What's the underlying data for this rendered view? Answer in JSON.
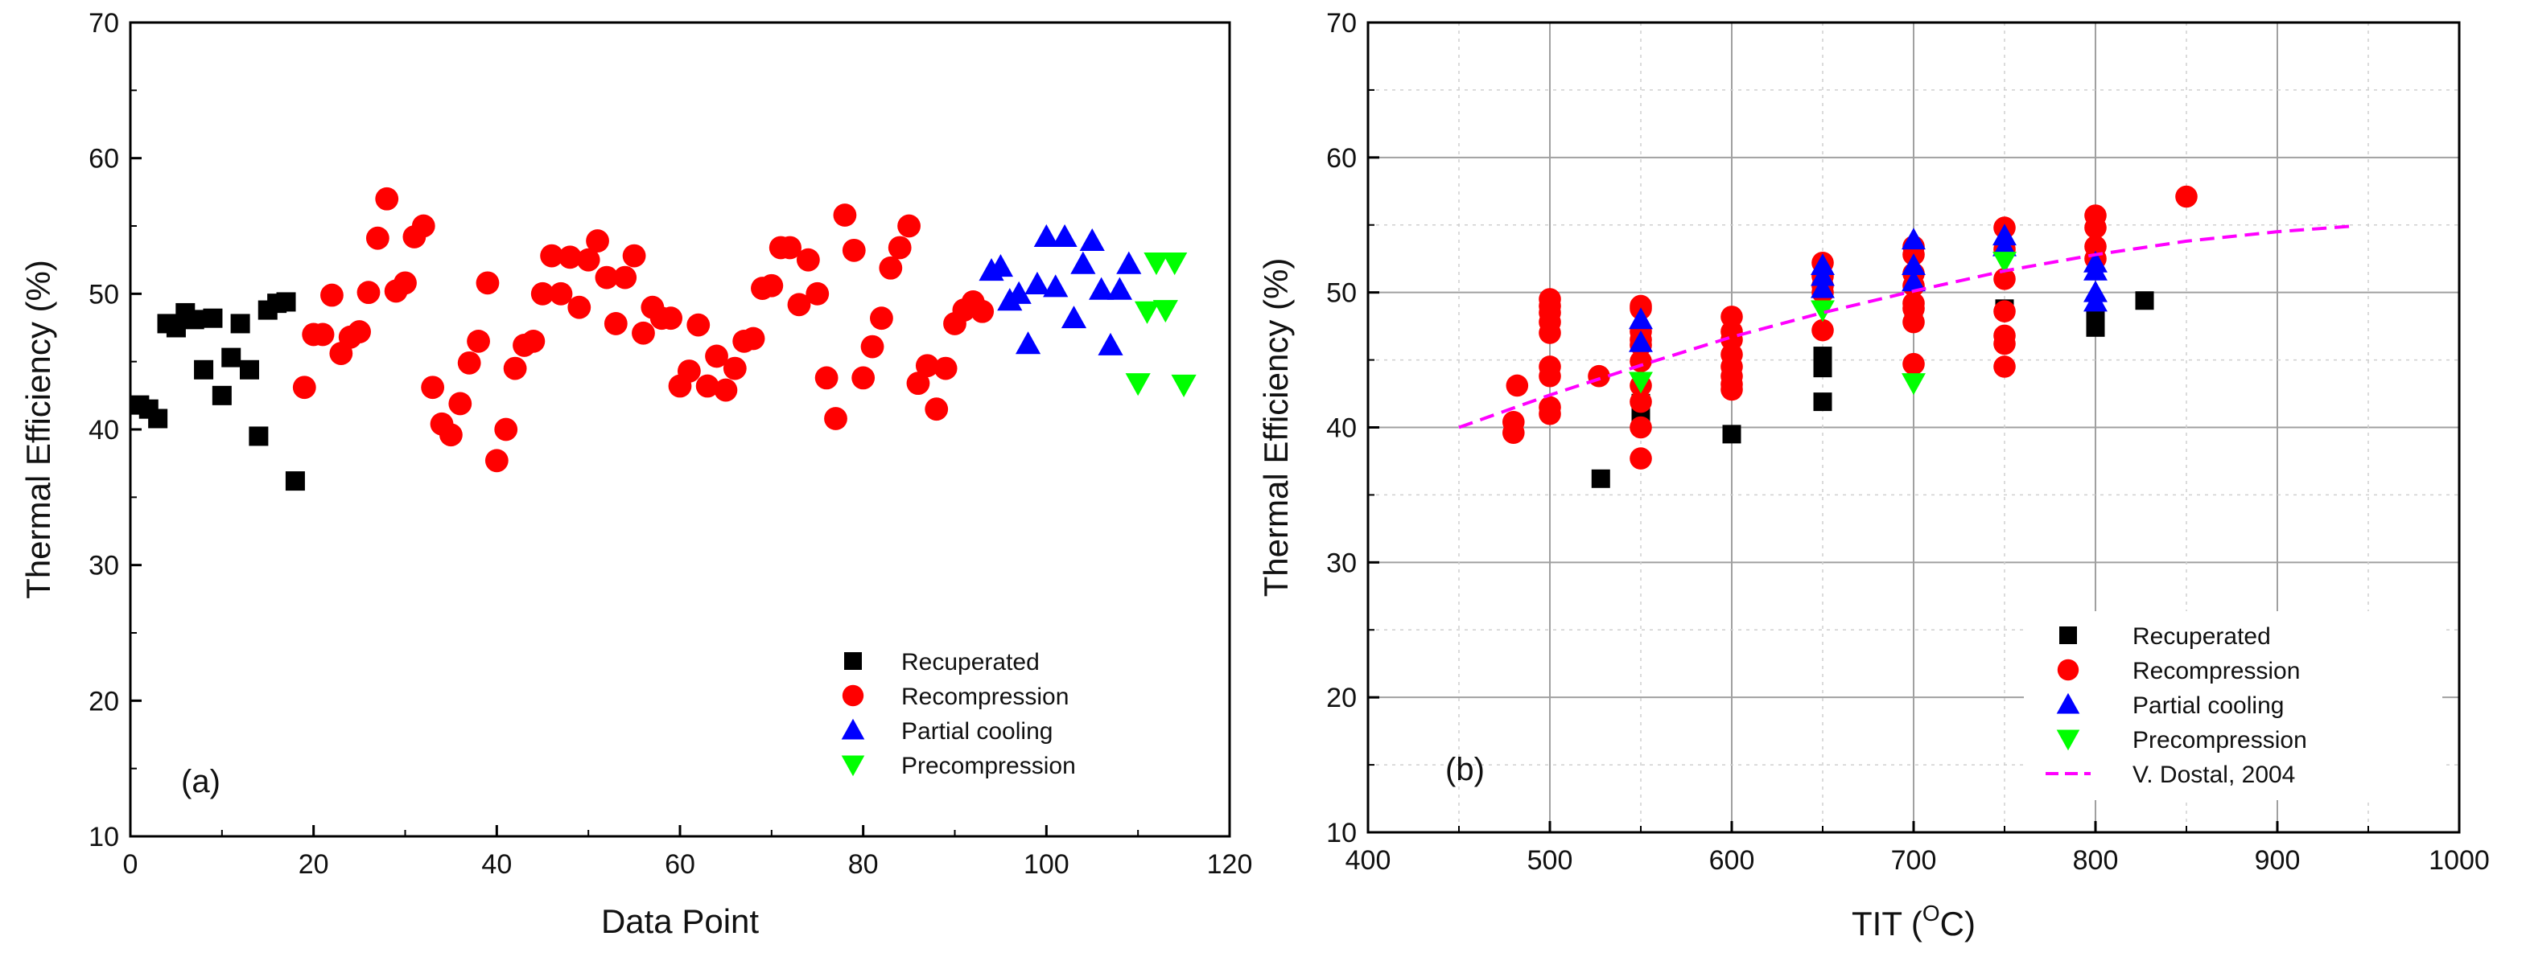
{
  "chart_data": [
    {
      "type": "scatter",
      "panel_label": "(a)",
      "xlabel": "Data Point",
      "ylabel": "Thermal Efficiency (%)",
      "xlim": [
        0,
        120
      ],
      "ylim": [
        10,
        70
      ],
      "xticks": [
        0,
        20,
        40,
        60,
        80,
        100,
        120
      ],
      "yticks": [
        10,
        20,
        30,
        40,
        50,
        60,
        70
      ],
      "grid": false,
      "legend_position": "bottom-right",
      "series": [
        {
          "name": "Recuperated",
          "marker": "square",
          "color": "#000000",
          "points": [
            [
              1,
              41.8
            ],
            [
              2,
              41.5
            ],
            [
              3,
              40.8
            ],
            [
              4,
              47.8
            ],
            [
              5,
              47.5
            ],
            [
              6,
              48.6
            ],
            [
              7,
              48.1
            ],
            [
              8,
              44.4
            ],
            [
              9,
              48.2
            ],
            [
              10,
              42.5
            ],
            [
              11,
              45.3
            ],
            [
              12,
              47.8
            ],
            [
              13,
              44.4
            ],
            [
              14,
              39.5
            ],
            [
              15,
              48.8
            ],
            [
              16,
              49.3
            ],
            [
              17,
              49.4
            ],
            [
              18,
              36.2
            ]
          ]
        },
        {
          "name": "Recompression",
          "marker": "circle",
          "color": "#ff0000",
          "points": [
            [
              19,
              43.1
            ],
            [
              20,
              47
            ],
            [
              21,
              47
            ],
            [
              22,
              49.9
            ],
            [
              23,
              45.6
            ],
            [
              24,
              46.8
            ],
            [
              25,
              47.2
            ],
            [
              26,
              50.1
            ],
            [
              27,
              54.1
            ],
            [
              28,
              57
            ],
            [
              29,
              50.2
            ],
            [
              30,
              50.8
            ],
            [
              31,
              54.2
            ],
            [
              32,
              55
            ],
            [
              33,
              43.1
            ],
            [
              34,
              40.4
            ],
            [
              35,
              39.6
            ],
            [
              36,
              41.9
            ],
            [
              37,
              44.9
            ],
            [
              38,
              46.5
            ],
            [
              39,
              50.8
            ],
            [
              40,
              37.7
            ],
            [
              41,
              40
            ],
            [
              42,
              44.5
            ],
            [
              43,
              46.2
            ],
            [
              44,
              46.5
            ],
            [
              45,
              50
            ],
            [
              46,
              52.8
            ],
            [
              47,
              50
            ],
            [
              48,
              52.7
            ],
            [
              49,
              49
            ],
            [
              50,
              52.5
            ],
            [
              51,
              53.9
            ],
            [
              52,
              51.2
            ],
            [
              53,
              47.8
            ],
            [
              54,
              51.2
            ],
            [
              55,
              52.8
            ],
            [
              56,
              47.1
            ],
            [
              57,
              49
            ],
            [
              58,
              48.2
            ],
            [
              59,
              48.2
            ],
            [
              60,
              43.2
            ],
            [
              61,
              44.3
            ],
            [
              62,
              47.7
            ],
            [
              63,
              43.2
            ],
            [
              64,
              45.4
            ],
            [
              65,
              42.9
            ],
            [
              66,
              44.5
            ],
            [
              67,
              46.5
            ],
            [
              68,
              46.7
            ],
            [
              69,
              50.4
            ],
            [
              70,
              50.6
            ],
            [
              71,
              53.4
            ],
            [
              72,
              53.4
            ],
            [
              73,
              49.2
            ],
            [
              74,
              52.5
            ],
            [
              75,
              50
            ],
            [
              76,
              43.8
            ],
            [
              77,
              40.8
            ],
            [
              78,
              55.8
            ],
            [
              79,
              53.2
            ],
            [
              80,
              43.8
            ],
            [
              81,
              46.1
            ],
            [
              82,
              48.2
            ],
            [
              83,
              51.9
            ],
            [
              84,
              53.4
            ],
            [
              85,
              55
            ],
            [
              86,
              43.4
            ],
            [
              87,
              44.7
            ],
            [
              88,
              41.5
            ],
            [
              89,
              44.5
            ],
            [
              90,
              47.8
            ],
            [
              91,
              48.8
            ],
            [
              92,
              49.4
            ],
            [
              93,
              48.7
            ]
          ]
        },
        {
          "name": "Partial cooling",
          "marker": "triangle-up",
          "color": "#0000ff",
          "points": [
            [
              94,
              51.7
            ],
            [
              95,
              52
            ],
            [
              96,
              49.5
            ],
            [
              97,
              50
            ],
            [
              98,
              46.3
            ],
            [
              99,
              50.7
            ],
            [
              100,
              54.2
            ],
            [
              101,
              50.5
            ],
            [
              102,
              54.2
            ],
            [
              103,
              48.2
            ],
            [
              104,
              52.2
            ],
            [
              105,
              53.9
            ],
            [
              106,
              50.3
            ],
            [
              107,
              46.2
            ],
            [
              108,
              50.3
            ],
            [
              109,
              52.2
            ]
          ]
        },
        {
          "name": "Precompression",
          "marker": "triangle-down",
          "color": "#00ff00",
          "points": [
            [
              110,
              43.4
            ],
            [
              111,
              48.7
            ],
            [
              112,
              52.3
            ],
            [
              113,
              48.8
            ],
            [
              114,
              52.3
            ],
            [
              115,
              43.3
            ]
          ]
        }
      ]
    },
    {
      "type": "scatter",
      "panel_label": "(b)",
      "xlabel_main": "TIT (",
      "xlabel_sup": "O",
      "xlabel_end": "C)",
      "ylabel": "Thermal Efficiency (%)",
      "xlim": [
        400,
        1000
      ],
      "ylim": [
        10,
        70
      ],
      "xticks": [
        400,
        500,
        600,
        700,
        800,
        900,
        1000
      ],
      "yticks": [
        10,
        20,
        30,
        40,
        50,
        60,
        70
      ],
      "grid": true,
      "legend_position": "bottom-right",
      "series": [
        {
          "name": "Recuperated",
          "marker": "square",
          "color": "#000000",
          "points": [
            [
              528,
              36.2
            ],
            [
              550,
              40.8
            ],
            [
              550,
              41.5
            ],
            [
              550,
              41.8
            ],
            [
              600,
              39.5
            ],
            [
              650,
              41.9
            ],
            [
              650,
              44.4
            ],
            [
              650,
              45.3
            ],
            [
              700,
              48.1
            ],
            [
              700,
              48.2
            ],
            [
              750,
              48.8
            ],
            [
              800,
              47.4
            ],
            [
              800,
              48.2
            ],
            [
              827,
              49.4
            ]
          ]
        },
        {
          "name": "Recompression",
          "marker": "circle",
          "color": "#ff0000",
          "points": [
            [
              480,
              39.6
            ],
            [
              480,
              40.4
            ],
            [
              482,
              43.1
            ],
            [
              500,
              41
            ],
            [
              500,
              41.5
            ],
            [
              500,
              43.8
            ],
            [
              500,
              44.5
            ],
            [
              500,
              47
            ],
            [
              500,
              47.8
            ],
            [
              500,
              48.5
            ],
            [
              500,
              49
            ],
            [
              500,
              49.5
            ],
            [
              527,
              43.8
            ],
            [
              550,
              37.7
            ],
            [
              550,
              40
            ],
            [
              550,
              41.9
            ],
            [
              550,
              43.1
            ],
            [
              550,
              44.9
            ],
            [
              550,
              46.1
            ],
            [
              550,
              46.5
            ],
            [
              550,
              47.1
            ],
            [
              550,
              48.8
            ],
            [
              550,
              49
            ],
            [
              600,
              42.8
            ],
            [
              600,
              43.2
            ],
            [
              600,
              43.8
            ],
            [
              600,
              44.5
            ],
            [
              600,
              45.4
            ],
            [
              600,
              46.5
            ],
            [
              600,
              47.1
            ],
            [
              600,
              48.2
            ],
            [
              650,
              47.2
            ],
            [
              650,
              50
            ],
            [
              650,
              50.5
            ],
            [
              650,
              51.2
            ],
            [
              650,
              52.2
            ],
            [
              700,
              44.7
            ],
            [
              700,
              47.8
            ],
            [
              700,
              48.8
            ],
            [
              700,
              49.2
            ],
            [
              700,
              50.5
            ],
            [
              700,
              51.4
            ],
            [
              700,
              52.8
            ],
            [
              700,
              53.4
            ],
            [
              750,
              44.5
            ],
            [
              750,
              46.2
            ],
            [
              750,
              46.8
            ],
            [
              750,
              48.6
            ],
            [
              750,
              51
            ],
            [
              750,
              53.2
            ],
            [
              750,
              54.8
            ],
            [
              800,
              52.5
            ],
            [
              800,
              53.4
            ],
            [
              800,
              54.8
            ],
            [
              800,
              55.7
            ],
            [
              850,
              57.1
            ]
          ]
        },
        {
          "name": "Partial cooling",
          "marker": "triangle-up",
          "color": "#0000ff",
          "points": [
            [
              550,
              46.3
            ],
            [
              550,
              48
            ],
            [
              650,
              50.3
            ],
            [
              650,
              51.2
            ],
            [
              650,
              52
            ],
            [
              700,
              50.8
            ],
            [
              700,
              52
            ],
            [
              700,
              53.9
            ],
            [
              750,
              53.4
            ],
            [
              750,
              54.2
            ],
            [
              800,
              49.3
            ],
            [
              800,
              50
            ],
            [
              800,
              51.6
            ],
            [
              800,
              52.2
            ]
          ]
        },
        {
          "name": "Precompression",
          "marker": "triangle-down",
          "color": "#00ff00",
          "points": [
            [
              550,
              43.4
            ],
            [
              650,
              48.7
            ],
            [
              700,
              43.3
            ],
            [
              750,
              52.3
            ]
          ]
        },
        {
          "name": "V. Dostal, 2004",
          "marker": "line-dashed",
          "color": "#ff00ff",
          "points": [
            [
              450,
              40
            ],
            [
              500,
              42.4
            ],
            [
              550,
              44.6
            ],
            [
              600,
              46.7
            ],
            [
              650,
              48.5
            ],
            [
              700,
              50.1
            ],
            [
              750,
              51.6
            ],
            [
              800,
              52.8
            ],
            [
              850,
              53.8
            ],
            [
              900,
              54.5
            ],
            [
              940,
              54.9
            ]
          ]
        }
      ]
    }
  ]
}
